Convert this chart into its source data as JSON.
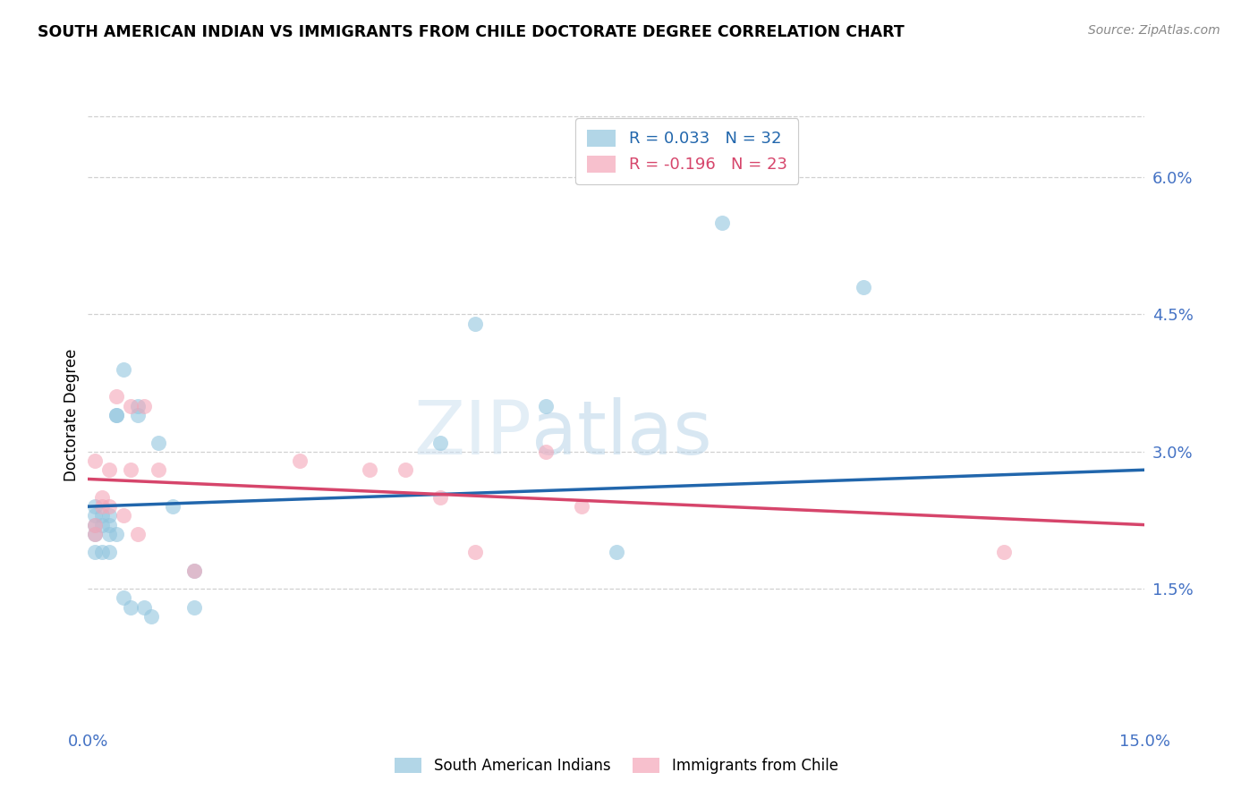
{
  "title": "SOUTH AMERICAN INDIAN VS IMMIGRANTS FROM CHILE DOCTORATE DEGREE CORRELATION CHART",
  "source": "Source: ZipAtlas.com",
  "ylabel": "Doctorate Degree",
  "ytick_labels": [
    "6.0%",
    "4.5%",
    "3.0%",
    "1.5%"
  ],
  "ytick_values": [
    0.06,
    0.045,
    0.03,
    0.015
  ],
  "xmin": 0.0,
  "xmax": 0.15,
  "ymin": 0.0,
  "ymax": 0.068,
  "blue_color": "#92c5de",
  "pink_color": "#f4a6b8",
  "blue_line_color": "#2166ac",
  "pink_line_color": "#d6456b",
  "legend_blue_r": "R = 0.033",
  "legend_blue_n": "N = 32",
  "legend_pink_r": "R = -0.196",
  "legend_pink_n": "N = 23",
  "watermark_zip": "ZIP",
  "watermark_atlas": "atlas",
  "blue_points_x": [
    0.001,
    0.001,
    0.001,
    0.001,
    0.001,
    0.002,
    0.002,
    0.002,
    0.003,
    0.003,
    0.003,
    0.003,
    0.004,
    0.004,
    0.004,
    0.005,
    0.005,
    0.006,
    0.007,
    0.007,
    0.008,
    0.009,
    0.01,
    0.012,
    0.015,
    0.015,
    0.05,
    0.055,
    0.065,
    0.075,
    0.09,
    0.11
  ],
  "blue_points_y": [
    0.024,
    0.023,
    0.022,
    0.021,
    0.019,
    0.023,
    0.022,
    0.019,
    0.023,
    0.022,
    0.021,
    0.019,
    0.034,
    0.034,
    0.021,
    0.039,
    0.014,
    0.013,
    0.035,
    0.034,
    0.013,
    0.012,
    0.031,
    0.024,
    0.017,
    0.013,
    0.031,
    0.044,
    0.035,
    0.019,
    0.055,
    0.048
  ],
  "pink_points_x": [
    0.001,
    0.001,
    0.001,
    0.002,
    0.002,
    0.003,
    0.003,
    0.004,
    0.005,
    0.006,
    0.006,
    0.007,
    0.008,
    0.01,
    0.015,
    0.03,
    0.04,
    0.045,
    0.05,
    0.055,
    0.065,
    0.07,
    0.13
  ],
  "pink_points_y": [
    0.029,
    0.022,
    0.021,
    0.025,
    0.024,
    0.028,
    0.024,
    0.036,
    0.023,
    0.035,
    0.028,
    0.021,
    0.035,
    0.028,
    0.017,
    0.029,
    0.028,
    0.028,
    0.025,
    0.019,
    0.03,
    0.024,
    0.019
  ],
  "blue_trend_x": [
    0.0,
    0.15
  ],
  "blue_trend_y": [
    0.024,
    0.028
  ],
  "pink_trend_x": [
    0.0,
    0.15
  ],
  "pink_trend_y": [
    0.027,
    0.022
  ],
  "grid_color": "#d0d0d0",
  "bg_color": "#ffffff"
}
